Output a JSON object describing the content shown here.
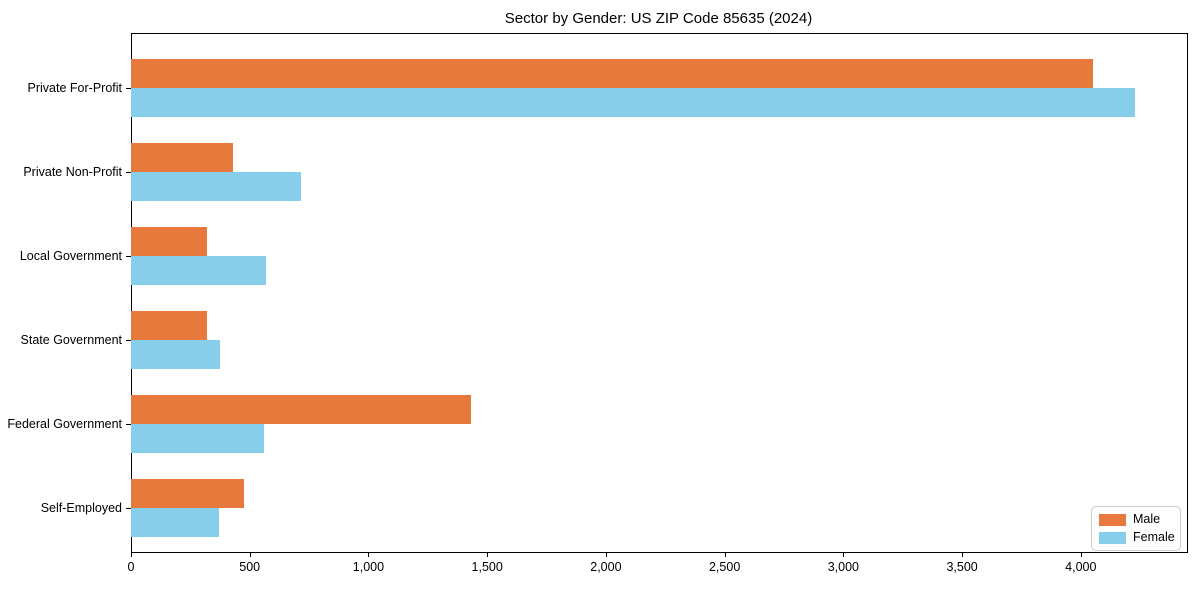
{
  "chart_data": {
    "type": "bar",
    "orientation": "horizontal",
    "title": "Sector by Gender: US ZIP Code 85635 (2024)",
    "categories": [
      "Private For-Profit",
      "Private Non-Profit",
      "Local Government",
      "State Government",
      "Federal Government",
      "Self-Employed"
    ],
    "series": [
      {
        "name": "Male",
        "color": "#E8793D",
        "values": [
          4050,
          430,
          320,
          320,
          1430,
          475
        ]
      },
      {
        "name": "Female",
        "color": "#87CEEB",
        "values": [
          4230,
          715,
          570,
          375,
          560,
          370
        ]
      }
    ],
    "xlim": [
      0,
      4443
    ],
    "x_ticks": [
      0,
      500,
      1000,
      1500,
      2000,
      2500,
      3000,
      3500,
      4000
    ],
    "x_tick_labels": [
      "0",
      "500",
      "1,000",
      "1,500",
      "2,000",
      "2,500",
      "3,000",
      "3,500",
      "4,000"
    ],
    "xlabel": "",
    "ylabel": "",
    "grid": false,
    "legend_position": "lower right",
    "background_color": "#ffffff",
    "spine_color": "#000000"
  }
}
